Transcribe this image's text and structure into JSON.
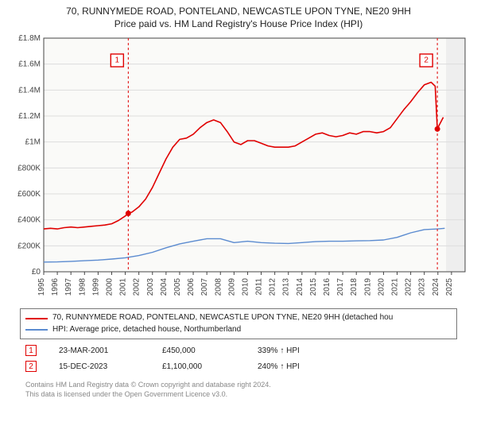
{
  "title": "70, RUNNYMEDE ROAD, PONTELAND, NEWCASTLE UPON TYNE, NE20 9HH",
  "subtitle": "Price paid vs. HM Land Registry's House Price Index (HPI)",
  "chart": {
    "type": "line",
    "background_color": "#ffffff",
    "plot_background_color": "#fafaf8",
    "grid_color": "#dddddd",
    "axis_color": "#444444",
    "x": {
      "min": 1995,
      "max": 2026,
      "ticks": [
        1995,
        1996,
        1997,
        1998,
        1999,
        2000,
        2001,
        2002,
        2003,
        2004,
        2005,
        2006,
        2007,
        2008,
        2009,
        2010,
        2011,
        2012,
        2013,
        2014,
        2015,
        2016,
        2017,
        2018,
        2019,
        2020,
        2021,
        2022,
        2023,
        2024,
        2025
      ],
      "tick_labels": [
        "1995",
        "1996",
        "1997",
        "1998",
        "1999",
        "2000",
        "2001",
        "2002",
        "2003",
        "2004",
        "2005",
        "2006",
        "2007",
        "2008",
        "2009",
        "2010",
        "2011",
        "2012",
        "2013",
        "2014",
        "2015",
        "2016",
        "2017",
        "2018",
        "2019",
        "2020",
        "2021",
        "2022",
        "2023",
        "2024",
        "2025"
      ],
      "tick_rotation": -90,
      "fontsize": 10
    },
    "y": {
      "min": 0,
      "max": 1800000,
      "ticks": [
        0,
        200000,
        400000,
        600000,
        800000,
        1000000,
        1200000,
        1400000,
        1600000,
        1800000
      ],
      "tick_labels": [
        "£0",
        "£200K",
        "£400K",
        "£600K",
        "£800K",
        "£1M",
        "£1.2M",
        "£1.4M",
        "£1.6M",
        "£1.8M"
      ],
      "fontsize": 10
    },
    "future_band": {
      "from": 2024.6,
      "to": 2026,
      "fill": "#eeeeee"
    },
    "series": [
      {
        "name": "price_paid",
        "color": "#e00000",
        "width": 1.6,
        "data": [
          [
            1995.0,
            330000
          ],
          [
            1995.5,
            335000
          ],
          [
            1996.0,
            330000
          ],
          [
            1996.5,
            340000
          ],
          [
            1997.0,
            345000
          ],
          [
            1997.5,
            340000
          ],
          [
            1998.0,
            345000
          ],
          [
            1998.5,
            350000
          ],
          [
            1999.0,
            355000
          ],
          [
            1999.5,
            360000
          ],
          [
            2000.0,
            370000
          ],
          [
            2000.5,
            395000
          ],
          [
            2001.0,
            430000
          ],
          [
            2001.22,
            450000
          ],
          [
            2001.5,
            460000
          ],
          [
            2002.0,
            500000
          ],
          [
            2002.5,
            560000
          ],
          [
            2003.0,
            650000
          ],
          [
            2003.5,
            760000
          ],
          [
            2004.0,
            870000
          ],
          [
            2004.5,
            960000
          ],
          [
            2005.0,
            1020000
          ],
          [
            2005.5,
            1030000
          ],
          [
            2006.0,
            1060000
          ],
          [
            2006.5,
            1110000
          ],
          [
            2007.0,
            1150000
          ],
          [
            2007.5,
            1170000
          ],
          [
            2008.0,
            1150000
          ],
          [
            2008.5,
            1080000
          ],
          [
            2009.0,
            1000000
          ],
          [
            2009.5,
            980000
          ],
          [
            2010.0,
            1010000
          ],
          [
            2010.5,
            1010000
          ],
          [
            2011.0,
            990000
          ],
          [
            2011.5,
            970000
          ],
          [
            2012.0,
            960000
          ],
          [
            2012.5,
            960000
          ],
          [
            2013.0,
            960000
          ],
          [
            2013.5,
            970000
          ],
          [
            2014.0,
            1000000
          ],
          [
            2014.5,
            1030000
          ],
          [
            2015.0,
            1060000
          ],
          [
            2015.5,
            1070000
          ],
          [
            2016.0,
            1050000
          ],
          [
            2016.5,
            1040000
          ],
          [
            2017.0,
            1050000
          ],
          [
            2017.5,
            1070000
          ],
          [
            2018.0,
            1060000
          ],
          [
            2018.5,
            1080000
          ],
          [
            2019.0,
            1080000
          ],
          [
            2019.5,
            1070000
          ],
          [
            2020.0,
            1080000
          ],
          [
            2020.5,
            1110000
          ],
          [
            2021.0,
            1180000
          ],
          [
            2021.5,
            1250000
          ],
          [
            2022.0,
            1310000
          ],
          [
            2022.5,
            1380000
          ],
          [
            2023.0,
            1440000
          ],
          [
            2023.5,
            1460000
          ],
          [
            2023.8,
            1430000
          ],
          [
            2023.96,
            1100000
          ],
          [
            2024.1,
            1130000
          ],
          [
            2024.4,
            1190000
          ]
        ]
      },
      {
        "name": "hpi",
        "color": "#5b8bd0",
        "width": 1.4,
        "data": [
          [
            1995.0,
            75000
          ],
          [
            1996.0,
            76000
          ],
          [
            1997.0,
            80000
          ],
          [
            1998.0,
            85000
          ],
          [
            1999.0,
            90000
          ],
          [
            2000.0,
            98000
          ],
          [
            2001.0,
            108000
          ],
          [
            2002.0,
            125000
          ],
          [
            2003.0,
            150000
          ],
          [
            2004.0,
            185000
          ],
          [
            2005.0,
            215000
          ],
          [
            2006.0,
            235000
          ],
          [
            2007.0,
            255000
          ],
          [
            2008.0,
            255000
          ],
          [
            2009.0,
            225000
          ],
          [
            2010.0,
            235000
          ],
          [
            2011.0,
            225000
          ],
          [
            2012.0,
            220000
          ],
          [
            2013.0,
            218000
          ],
          [
            2014.0,
            225000
          ],
          [
            2015.0,
            232000
          ],
          [
            2016.0,
            235000
          ],
          [
            2017.0,
            235000
          ],
          [
            2018.0,
            238000
          ],
          [
            2019.0,
            240000
          ],
          [
            2020.0,
            245000
          ],
          [
            2021.0,
            265000
          ],
          [
            2022.0,
            300000
          ],
          [
            2023.0,
            325000
          ],
          [
            2024.0,
            330000
          ],
          [
            2024.5,
            335000
          ]
        ]
      }
    ],
    "transaction_markers": [
      {
        "n": "1",
        "x": 2001.22,
        "y": 450000,
        "vline": true
      },
      {
        "n": "2",
        "x": 2023.96,
        "y": 1100000,
        "vline": true
      }
    ],
    "transaction_dot": {
      "radius": 3.5,
      "fill": "#e00000"
    },
    "vline_style": {
      "color": "#e00000",
      "dash": "3,3",
      "width": 1
    }
  },
  "legend": {
    "border_color": "#777777",
    "items": [
      {
        "color": "#e00000",
        "label": "70, RUNNYMEDE ROAD, PONTELAND, NEWCASTLE UPON TYNE, NE20 9HH (detached hou"
      },
      {
        "color": "#5b8bd0",
        "label": "HPI: Average price, detached house, Northumberland"
      }
    ]
  },
  "transactions": [
    {
      "n": "1",
      "date": "23-MAR-2001",
      "price": "£450,000",
      "pct": "339% ↑ HPI"
    },
    {
      "n": "2",
      "date": "15-DEC-2023",
      "price": "£1,100,000",
      "pct": "240% ↑ HPI"
    }
  ],
  "footer": {
    "line1": "Contains HM Land Registry data © Crown copyright and database right 2024.",
    "line2": "This data is licensed under the Open Government Licence v3.0."
  }
}
